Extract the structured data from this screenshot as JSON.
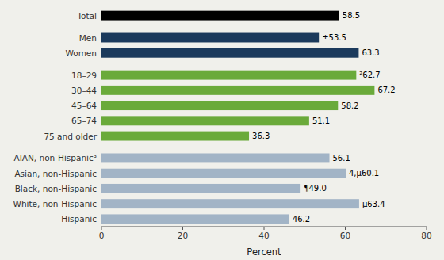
{
  "chart_data": {
    "type": "bar",
    "orientation": "horizontal",
    "categories": [
      "Hispanic",
      "White, non-Hispanic",
      "Black, non-Hispanic",
      "Asian, non-Hispanic",
      "AIAN, non-Hispanic³",
      "75 and older",
      "65–74",
      "45–64",
      "30–44",
      "18–29",
      "Women",
      "Men",
      "Total"
    ],
    "values": [
      46.2,
      63.4,
      49.0,
      60.1,
      56.1,
      36.3,
      51.1,
      58.2,
      67.2,
      62.7,
      63.3,
      53.5,
      58.5
    ],
    "value_labels": [
      "46.2",
      "µ63.4",
      "¶49.0",
      "4,µ60.1",
      "56.1",
      "36.3",
      "51.1",
      "58.2",
      "67.2",
      "²62.7",
      "63.3",
      "±53.5",
      "58.5"
    ],
    "colors": [
      "#a2b4c6",
      "#a2b4c6",
      "#a2b4c6",
      "#a2b4c6",
      "#a2b4c6",
      "#6aaa3a",
      "#6aaa3a",
      "#6aaa3a",
      "#6aaa3a",
      "#6aaa3a",
      "#1b3a5c",
      "#1b3a5c",
      "#000000"
    ],
    "data_labels": true,
    "grid": false,
    "xlabel": "Percent",
    "xlim": [
      0,
      80
    ],
    "xticks": [
      0,
      20,
      40,
      60,
      80
    ]
  }
}
